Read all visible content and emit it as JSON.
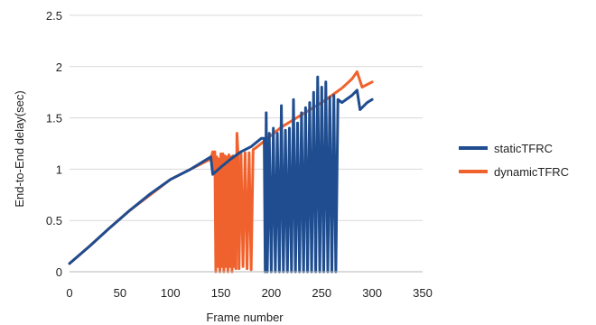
{
  "chart_data": {
    "type": "line",
    "xlabel": "Frame number",
    "ylabel": "End-to-End delay(sec)",
    "xlim": [
      0,
      350
    ],
    "ylim": [
      0,
      2.5
    ],
    "xticks": [
      "0",
      "50",
      "100",
      "150",
      "200",
      "250",
      "300",
      "350"
    ],
    "yticks": [
      "0",
      "0.5",
      "1",
      "1.5",
      "2",
      "2.5"
    ],
    "grid": "horizontal",
    "legend": "right",
    "series": [
      {
        "name": "dynamicTFRC",
        "color": "#f0622d",
        "points": [
          [
            0,
            0.08
          ],
          [
            20,
            0.25
          ],
          [
            40,
            0.43
          ],
          [
            60,
            0.6
          ],
          [
            80,
            0.75
          ],
          [
            100,
            0.9
          ],
          [
            120,
            1.0
          ],
          [
            140,
            1.1
          ],
          [
            142,
            1.17
          ],
          [
            143,
            0.98
          ],
          [
            144,
            1.17
          ],
          [
            145,
            0.0
          ],
          [
            146,
            1.12
          ],
          [
            147,
            0.05
          ],
          [
            148,
            1.1
          ],
          [
            149,
            0.0
          ],
          [
            150,
            1.15
          ],
          [
            151,
            0.05
          ],
          [
            152,
            1.15
          ],
          [
            153,
            0.0
          ],
          [
            154,
            1.13
          ],
          [
            155,
            0.05
          ],
          [
            156,
            1.12
          ],
          [
            157,
            0.0
          ],
          [
            158,
            1.14
          ],
          [
            159,
            0.05
          ],
          [
            160,
            1.12
          ],
          [
            161,
            0.0
          ],
          [
            162,
            1.13
          ],
          [
            163,
            0.05
          ],
          [
            164,
            1.12
          ],
          [
            165,
            0.03
          ],
          [
            166,
            1.35
          ],
          [
            167,
            1.15
          ],
          [
            168,
            0.03
          ],
          [
            170,
            1.15
          ],
          [
            172,
            0.05
          ],
          [
            174,
            1.16
          ],
          [
            176,
            0.03
          ],
          [
            178,
            1.16
          ],
          [
            180,
            0.02
          ],
          [
            182,
            1.19
          ],
          [
            185,
            1.21
          ],
          [
            190,
            1.25
          ],
          [
            200,
            1.33
          ],
          [
            210,
            1.41
          ],
          [
            220,
            1.47
          ],
          [
            230,
            1.53
          ],
          [
            240,
            1.59
          ],
          [
            250,
            1.65
          ],
          [
            260,
            1.72
          ],
          [
            270,
            1.79
          ],
          [
            280,
            1.88
          ],
          [
            285,
            1.95
          ],
          [
            290,
            1.8
          ],
          [
            300,
            1.85
          ]
        ]
      },
      {
        "name": "staticTFRC",
        "color": "#1f4d8f",
        "points": [
          [
            0,
            0.08
          ],
          [
            20,
            0.25
          ],
          [
            40,
            0.43
          ],
          [
            60,
            0.6
          ],
          [
            80,
            0.76
          ],
          [
            100,
            0.9
          ],
          [
            120,
            1.0
          ],
          [
            140,
            1.12
          ],
          [
            142,
            0.95
          ],
          [
            150,
            1.02
          ],
          [
            160,
            1.1
          ],
          [
            170,
            1.17
          ],
          [
            180,
            1.22
          ],
          [
            190,
            1.3
          ],
          [
            193,
            1.3
          ],
          [
            194,
            0.0
          ],
          [
            195,
            1.55
          ],
          [
            196,
            0.0
          ],
          [
            198,
            1.35
          ],
          [
            200,
            0.0
          ],
          [
            202,
            1.4
          ],
          [
            204,
            0.0
          ],
          [
            206,
            1.35
          ],
          [
            208,
            0.0
          ],
          [
            210,
            1.62
          ],
          [
            212,
            0.0
          ],
          [
            214,
            1.38
          ],
          [
            216,
            0.0
          ],
          [
            218,
            1.4
          ],
          [
            220,
            0.0
          ],
          [
            222,
            1.68
          ],
          [
            224,
            0.0
          ],
          [
            226,
            1.45
          ],
          [
            228,
            0.0
          ],
          [
            230,
            1.55
          ],
          [
            232,
            0.0
          ],
          [
            234,
            1.6
          ],
          [
            236,
            0.0
          ],
          [
            238,
            1.65
          ],
          [
            240,
            0.0
          ],
          [
            242,
            1.75
          ],
          [
            244,
            0.0
          ],
          [
            246,
            1.9
          ],
          [
            248,
            0.0
          ],
          [
            250,
            1.8
          ],
          [
            252,
            0.0
          ],
          [
            254,
            1.85
          ],
          [
            256,
            0.0
          ],
          [
            258,
            1.7
          ],
          [
            260,
            0.0
          ],
          [
            262,
            1.72
          ],
          [
            264,
            0.0
          ],
          [
            266,
            1.68
          ],
          [
            270,
            1.65
          ],
          [
            280,
            1.72
          ],
          [
            285,
            1.77
          ],
          [
            288,
            1.58
          ],
          [
            295,
            1.65
          ],
          [
            300,
            1.68
          ]
        ]
      }
    ]
  }
}
